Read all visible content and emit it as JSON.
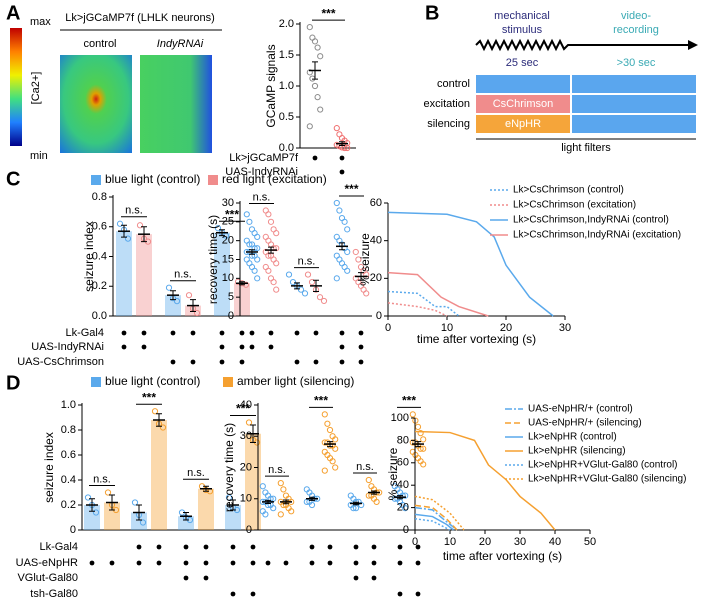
{
  "panel_labels": [
    "A",
    "B",
    "C",
    "D"
  ],
  "imaging": {
    "title": "Lk>jGCaMP7f (LHLK neurons)",
    "columns": [
      "control",
      "IndyRNAi"
    ],
    "colorbar": {
      "max": "max",
      "min": "min",
      "label": "[Ca2+]"
    }
  },
  "protocol": {
    "stimulus": [
      "mechanical",
      "stimulus"
    ],
    "recording": [
      "video-",
      "recording"
    ],
    "durations": [
      "25 sec",
      ">30 sec"
    ],
    "rows": [
      "control",
      "excitation",
      "silencing"
    ],
    "tools": [
      "CsChrimson",
      "eNpHR"
    ],
    "footer": "light filters"
  },
  "chart_data": [
    {
      "type": "dot",
      "ylabel": "GCaMP signals",
      "bars": false,
      "ylim": [
        0,
        2
      ],
      "yticks": [
        {
          "value": 0,
          "label": "0.0"
        },
        {
          "value": 0.5,
          "label": "0.5"
        },
        {
          "value": 1,
          "label": "1.0"
        },
        {
          "value": 1.5,
          "label": "1.5"
        },
        {
          "value": 2,
          "label": "2.0"
        }
      ],
      "groups": [
        {
          "color": "#8c8c8c",
          "mean": 1.25,
          "sem": 0.14,
          "points": [
            1.95,
            1.78,
            1.72,
            1.62,
            1.48,
            1.22,
            1.12,
            1.0,
            0.82,
            0.62,
            0.35
          ]
        },
        {
          "color": "#f07070",
          "mean": 0.07,
          "sem": 0.03,
          "points": [
            0.32,
            0.22,
            0.16,
            0.12,
            0.08,
            0.05,
            0.03,
            0.01,
            0.0,
            0.0
          ]
        }
      ],
      "significance": [
        "***"
      ],
      "genotype": [
        {
          "label": "Lk>jGCaMP7f",
          "present": [
            true,
            true
          ]
        },
        {
          "label": "UAS-IndyRNAi",
          "present": [
            false,
            true
          ]
        }
      ]
    },
    {
      "type": "dot",
      "ylabel": "seizure index",
      "bars": true,
      "ylim": [
        0,
        0.8
      ],
      "yticks": [
        {
          "value": 0,
          "label": "0.0"
        },
        0.2,
        0.4,
        0.6,
        0.8
      ],
      "legend": [
        {
          "name": "blue light (control)",
          "color": "#5aa9ec"
        },
        {
          "name": "red light (excitation)",
          "color": "#f08c8c"
        }
      ],
      "groups": [
        {
          "color": "#5aa9ec",
          "mean": 0.57,
          "sem": 0.04,
          "points": [
            0.62,
            0.58,
            0.52
          ]
        },
        {
          "color": "#f08c8c",
          "mean": 0.55,
          "sem": 0.05,
          "points": [
            0.61,
            0.52,
            0.5
          ]
        },
        {
          "color": "#5aa9ec",
          "mean": 0.14,
          "sem": 0.03,
          "points": [
            0.19,
            0.12,
            0.1
          ]
        },
        {
          "color": "#f08c8c",
          "mean": 0.07,
          "sem": 0.04,
          "points": [
            0.14,
            0.05,
            0.02
          ]
        },
        {
          "color": "#5aa9ec",
          "mean": 0.56,
          "sem": 0.02,
          "points": [
            0.59,
            0.56,
            0.54
          ]
        },
        {
          "color": "#f08c8c",
          "mean": 0.22,
          "sem": 0.01,
          "points": [
            0.23,
            0.22,
            0.21
          ]
        }
      ],
      "significance": [
        "n.s.",
        "n.s.",
        "***"
      ],
      "genotype": [
        {
          "label": "Lk-Gal4",
          "present": [
            true,
            true,
            true,
            true,
            true,
            true
          ]
        },
        {
          "label": "UAS-IndyRNAi",
          "present": [
            true,
            true,
            false,
            false,
            true,
            true
          ]
        },
        {
          "label": "UAS-CsChrimson",
          "present": [
            false,
            false,
            true,
            true,
            true,
            true
          ]
        }
      ]
    },
    {
      "type": "dot",
      "ylabel": "recovery time (s)",
      "bars": false,
      "ylim": [
        0,
        30
      ],
      "yticks": [
        0,
        5,
        10,
        15,
        20,
        25,
        30
      ],
      "groups": [
        {
          "color": "#5aa9ec",
          "mean": 17,
          "sem": 0.6,
          "points": [
            27,
            25,
            23,
            22,
            21,
            20,
            19,
            19,
            18,
            18,
            17,
            17,
            16,
            16,
            15,
            15,
            14,
            13,
            12,
            10
          ]
        },
        {
          "color": "#f08c8c",
          "mean": 17.5,
          "sem": 0.8,
          "points": [
            28,
            27,
            25,
            23,
            22,
            21,
            20,
            19,
            18,
            18,
            17,
            16,
            16,
            15,
            14,
            13,
            12,
            10,
            9,
            7
          ]
        },
        {
          "color": "#5aa9ec",
          "mean": 8,
          "sem": 0.8,
          "points": [
            11,
            9,
            8,
            7,
            6
          ]
        },
        {
          "color": "#f08c8c",
          "mean": 8,
          "sem": 1.5,
          "points": [
            11,
            9,
            7,
            5,
            4
          ]
        },
        {
          "color": "#5aa9ec",
          "mean": 18.5,
          "sem": 0.9,
          "points": [
            30,
            28,
            26,
            25,
            23,
            21,
            20,
            19,
            18,
            17,
            16,
            15,
            14,
            13,
            12,
            10
          ]
        },
        {
          "color": "#f08c8c",
          "mean": 10.5,
          "sem": 1,
          "points": [
            17,
            15,
            13,
            12,
            11,
            10,
            9,
            8,
            7,
            6
          ]
        }
      ],
      "significance": [
        "n.s.",
        "n.s.",
        "***"
      ],
      "genotype": [
        {
          "present": [
            true,
            true,
            true,
            true,
            true,
            true
          ]
        },
        {
          "present": [
            true,
            true,
            false,
            false,
            true,
            true
          ]
        },
        {
          "present": [
            false,
            false,
            true,
            true,
            true,
            true
          ]
        }
      ]
    },
    {
      "type": "line",
      "xlabel": "time after vortexing (s)",
      "ylabel": "% seizure",
      "xlim": [
        0,
        30
      ],
      "ylim": [
        0,
        60
      ],
      "xticks": [
        0,
        10,
        20,
        30
      ],
      "yticks": [
        0,
        20,
        40,
        60
      ],
      "series": [
        {
          "name": "Lk>CsChrimson (control)",
          "color": "#5aa9ec",
          "dash": "dotted",
          "x": [
            0,
            5,
            8,
            10,
            12
          ],
          "values": [
            13,
            12,
            5,
            5,
            0
          ]
        },
        {
          "name": "Lk>CsChrimson (excitation)",
          "color": "#f08c8c",
          "dash": "dotted",
          "x": [
            0,
            5,
            8,
            10
          ],
          "values": [
            7,
            5,
            3,
            0
          ]
        },
        {
          "name": "Lk>CsChrimson,IndyRNAi (control)",
          "color": "#5aa9ec",
          "dash": "solid",
          "x": [
            0,
            10,
            15,
            18,
            20,
            24,
            28
          ],
          "values": [
            55,
            54,
            50,
            42,
            27,
            10,
            0
          ]
        },
        {
          "name": "Lk>CsChrimson,IndyRNAi (excitation)",
          "color": "#f08c8c",
          "dash": "solid",
          "x": [
            0,
            5,
            9,
            12,
            17
          ],
          "values": [
            23,
            22,
            10,
            5,
            0
          ]
        }
      ]
    },
    {
      "type": "dot",
      "ylabel": "seizure index",
      "bars": true,
      "ylim": [
        0,
        1
      ],
      "yticks": [
        0,
        0.2,
        0.4,
        0.6,
        0.8,
        {
          "value": 1,
          "label": "1.0"
        }
      ],
      "legend": [
        {
          "name": "blue light (control)",
          "color": "#5aa9ec"
        },
        {
          "name": "amber light (silencing)",
          "color": "#f5a030"
        }
      ],
      "groups": [
        {
          "color": "#5aa9ec",
          "mean": 0.2,
          "sem": 0.05,
          "points": [
            0.26,
            0.2,
            0.14
          ]
        },
        {
          "color": "#f5a030",
          "mean": 0.22,
          "sem": 0.06,
          "points": [
            0.3,
            0.2,
            0.16
          ]
        },
        {
          "color": "#5aa9ec",
          "mean": 0.14,
          "sem": 0.06,
          "points": [
            0.22,
            0.12,
            0.06
          ]
        },
        {
          "color": "#f5a030",
          "mean": 0.88,
          "sem": 0.05,
          "points": [
            0.95,
            0.85,
            0.82
          ]
        },
        {
          "color": "#5aa9ec",
          "mean": 0.11,
          "sem": 0.03,
          "points": [
            0.14,
            0.1,
            0.08
          ]
        },
        {
          "color": "#f5a030",
          "mean": 0.33,
          "sem": 0.02,
          "points": [
            0.35,
            0.32,
            0.31
          ]
        },
        {
          "color": "#5aa9ec",
          "mean": 0.2,
          "sem": 0.04,
          "points": [
            0.26,
            0.18,
            0.16
          ]
        },
        {
          "color": "#f5a030",
          "mean": 0.77,
          "sem": 0.07,
          "points": [
            0.86,
            0.72,
            0.7
          ]
        }
      ],
      "significance": [
        "n.s.",
        "***",
        "n.s.",
        "***"
      ],
      "genotype": [
        {
          "label": "Lk-Gal4",
          "present": [
            false,
            false,
            true,
            true,
            true,
            true,
            true,
            true
          ]
        },
        {
          "label": "UAS-eNpHR",
          "present": [
            true,
            true,
            true,
            true,
            true,
            true,
            true,
            true
          ]
        },
        {
          "label": "VGlut-Gal80",
          "present": [
            false,
            false,
            false,
            false,
            true,
            true,
            false,
            false
          ]
        },
        {
          "label": "tsh-Gal80",
          "present": [
            false,
            false,
            false,
            false,
            false,
            false,
            true,
            true
          ]
        }
      ]
    },
    {
      "type": "dot",
      "ylabel": "recovery time (s)",
      "bars": false,
      "ylim": [
        0,
        40
      ],
      "yticks": [
        0,
        10,
        20,
        30,
        40
      ],
      "groups": [
        {
          "color": "#5aa9ec",
          "mean": 9,
          "sem": 0.5,
          "points": [
            14,
            12,
            11,
            10,
            10,
            9,
            9,
            8,
            8,
            7,
            6,
            5
          ]
        },
        {
          "color": "#f5a030",
          "mean": 9,
          "sem": 0.6,
          "points": [
            15,
            13,
            11,
            10,
            9,
            9,
            8,
            8,
            7,
            6,
            5
          ]
        },
        {
          "color": "#5aa9ec",
          "mean": 10,
          "sem": 0.5,
          "points": [
            13,
            12,
            11,
            10,
            10,
            9,
            9,
            8
          ]
        },
        {
          "color": "#f5a030",
          "mean": 27.5,
          "sem": 0.8,
          "points": [
            37,
            34,
            32,
            30,
            29,
            28,
            28,
            27,
            27,
            26,
            25,
            24,
            23,
            22,
            20,
            19
          ]
        },
        {
          "color": "#5aa9ec",
          "mean": 8.5,
          "sem": 0.4,
          "points": [
            11,
            10,
            9,
            9,
            8,
            8,
            7,
            7
          ]
        },
        {
          "color": "#f5a030",
          "mean": 12,
          "sem": 0.5,
          "points": [
            16,
            14,
            13,
            12,
            12,
            11,
            11,
            10,
            9
          ]
        },
        {
          "color": "#5aa9ec",
          "mean": 10.5,
          "sem": 0.5,
          "points": [
            14,
            13,
            12,
            11,
            11,
            10,
            10,
            9,
            8,
            7
          ]
        },
        {
          "color": "#f5a030",
          "mean": 27.5,
          "sem": 0.8,
          "points": [
            37,
            35,
            33,
            31,
            29,
            28,
            28,
            27,
            26,
            26,
            25,
            24,
            23,
            22,
            21
          ]
        }
      ],
      "significance": [
        "n.s.",
        "***",
        "n.s.",
        "***"
      ],
      "genotype": [
        {
          "present": [
            false,
            false,
            true,
            true,
            true,
            true,
            true,
            true
          ]
        },
        {
          "present": [
            true,
            true,
            true,
            true,
            true,
            true,
            true,
            true
          ]
        },
        {
          "present": [
            false,
            false,
            false,
            false,
            true,
            true,
            false,
            false
          ]
        },
        {
          "present": [
            false,
            false,
            false,
            false,
            false,
            false,
            true,
            true
          ]
        }
      ]
    },
    {
      "type": "line",
      "xlabel": "time after vortexing (s)",
      "ylabel": "% seizure",
      "xlim": [
        0,
        50
      ],
      "ylim": [
        0,
        100
      ],
      "xticks": [
        0,
        10,
        20,
        30,
        40,
        50
      ],
      "yticks": [
        0,
        20,
        40,
        60,
        80,
        100
      ],
      "series": [
        {
          "name": "UAS-eNpHR/+ (control)",
          "color": "#5aa9ec",
          "dash": "dashdot",
          "x": [
            0,
            5,
            8,
            12
          ],
          "values": [
            20,
            18,
            10,
            0
          ]
        },
        {
          "name": "UAS-eNpHR/+ (silencing)",
          "color": "#f5a030",
          "dash": "dashed",
          "x": [
            0,
            5,
            9,
            12
          ],
          "values": [
            22,
            20,
            10,
            0
          ]
        },
        {
          "name": "Lk>eNpHR (control)",
          "color": "#5aa9ec",
          "dash": "solid",
          "x": [
            0,
            5,
            9,
            11
          ],
          "values": [
            14,
            12,
            5,
            0
          ]
        },
        {
          "name": "Lk>eNpHR (silencing)",
          "color": "#f5a030",
          "dash": "solid",
          "x": [
            0,
            10,
            17,
            21,
            26,
            30,
            36,
            40
          ],
          "values": [
            88,
            87,
            80,
            58,
            45,
            30,
            15,
            0
          ]
        },
        {
          "name": "Lk>eNpHR+VGlut-Gal80 (control)",
          "color": "#5aa9ec",
          "dash": "dotted",
          "x": [
            0,
            5,
            10
          ],
          "values": [
            10,
            8,
            0
          ]
        },
        {
          "name": "Lk>eNpHR+VGlut-Gal80 (silencing)",
          "color": "#f5a030",
          "dash": "dotted",
          "x": [
            0,
            5,
            10,
            14
          ],
          "values": [
            30,
            27,
            15,
            0
          ]
        }
      ]
    }
  ]
}
